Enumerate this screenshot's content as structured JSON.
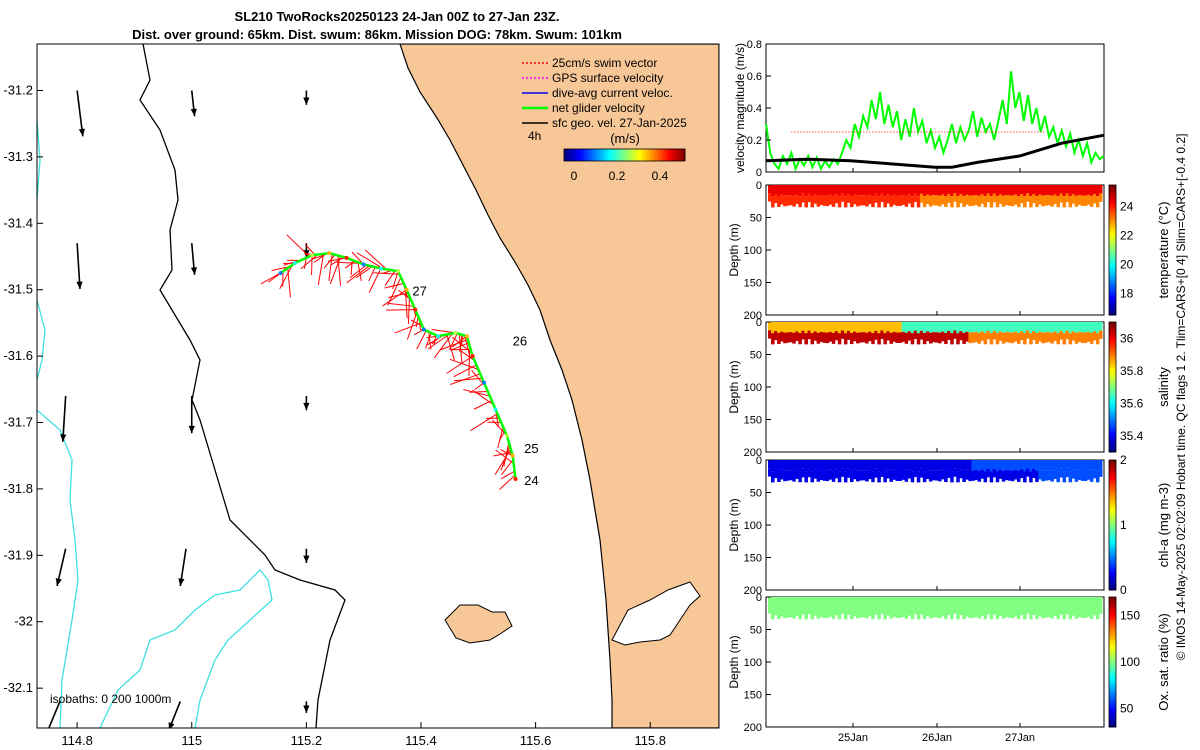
{
  "colors": {
    "land": "#f7c797",
    "isobath": "#40e0e0",
    "frame": "#000000",
    "track_vector": "#ff0000",
    "net_velocity": "#00ff00",
    "geo_velocity": "#000000"
  },
  "chart_data": [
    {
      "type": "map",
      "title": "SL210 TwoRocks20250123 24-Jan 00Z to 27-Jan 23Z.",
      "subtitle": "Dist. over ground: 65km. Dist. swum: 86km. Mission DOG: 78km. Swum: 101km",
      "xlim": [
        114.73,
        115.92
      ],
      "ylim": [
        -32.16,
        -31.13
      ],
      "xticks": [
        114.8,
        115,
        115.2,
        115.4,
        115.6,
        115.8
      ],
      "xtick_labels": [
        "114.8",
        "115",
        "115.2",
        "115.4",
        "115.6",
        "115.8"
      ],
      "yticks": [
        -31.2,
        -31.3,
        -31.4,
        -31.5,
        -31.6,
        -31.7,
        -31.8,
        -31.9,
        -32,
        -32.1
      ],
      "ytick_labels": [
        "-31.2",
        "-31.3",
        "-31.4",
        "-31.5",
        "-31.6",
        "-31.7",
        "-31.8",
        "-31.9",
        "-32",
        "-32.1"
      ],
      "legend": [
        {
          "label": "25cm/s swim vector",
          "color": "#ff0000",
          "style": "dotted"
        },
        {
          "label": "GPS surface velocity",
          "color": "#ff00ff",
          "style": "dotted"
        },
        {
          "label": "dive-avg current veloc.",
          "color": "#0000ff",
          "style": "solid"
        },
        {
          "label": "net glider velocity",
          "color": "#00ff00",
          "style": "solid"
        },
        {
          "label": "sfc geo. vel. 27-Jan-2025",
          "color": "#000000",
          "style": "solid"
        }
      ],
      "legend_note": "4h",
      "colorbar": {
        "label": "(m/s)",
        "ticks": [
          "0",
          "0.2",
          "0.4"
        ],
        "range": [
          0,
          0.5
        ]
      },
      "isobath_label": "isobaths: 0   200  1000m",
      "track": [
        [
          115.155,
          -31.475
        ],
        [
          115.18,
          -31.46
        ],
        [
          115.21,
          -31.448
        ],
        [
          115.24,
          -31.445
        ],
        [
          115.27,
          -31.452
        ],
        [
          115.3,
          -31.462
        ],
        [
          115.33,
          -31.468
        ],
        [
          115.36,
          -31.472
        ],
        [
          115.375,
          -31.5
        ],
        [
          115.39,
          -31.53
        ],
        [
          115.405,
          -31.56
        ],
        [
          115.43,
          -31.57
        ],
        [
          115.46,
          -31.565
        ],
        [
          115.48,
          -31.57
        ],
        [
          115.49,
          -31.6
        ],
        [
          115.51,
          -31.64
        ],
        [
          115.53,
          -31.68
        ],
        [
          115.55,
          -31.72
        ],
        [
          115.56,
          -31.75
        ],
        [
          115.565,
          -31.785
        ]
      ],
      "day_labels": [
        {
          "text": "27",
          "lon": 115.385,
          "lat": -31.503
        },
        {
          "text": "26",
          "lon": 115.56,
          "lat": -31.578
        },
        {
          "text": "25",
          "lon": 115.58,
          "lat": -31.74
        },
        {
          "text": "24",
          "lon": 115.58,
          "lat": -31.788
        }
      ],
      "geo_vectors": [
        {
          "lon": 114.8,
          "lat": -31.2,
          "u": 0.01,
          "v": -0.08
        },
        {
          "lon": 115.0,
          "lat": -31.2,
          "u": 0.005,
          "v": -0.045
        },
        {
          "lon": 115.2,
          "lat": -31.2,
          "u": 0.0,
          "v": -0.025
        },
        {
          "lon": 114.8,
          "lat": -31.43,
          "u": 0.005,
          "v": -0.08
        },
        {
          "lon": 115.0,
          "lat": -31.43,
          "u": 0.005,
          "v": -0.055
        },
        {
          "lon": 115.2,
          "lat": -31.43,
          "u": 0.0,
          "v": -0.025
        },
        {
          "lon": 114.78,
          "lat": -31.66,
          "u": -0.005,
          "v": -0.08
        },
        {
          "lon": 115.0,
          "lat": -31.66,
          "u": 0.0,
          "v": -0.065
        },
        {
          "lon": 115.2,
          "lat": -31.66,
          "u": 0.0,
          "v": -0.025
        },
        {
          "lon": 114.78,
          "lat": -31.89,
          "u": -0.015,
          "v": -0.065
        },
        {
          "lon": 114.99,
          "lat": -31.89,
          "u": -0.01,
          "v": -0.065
        },
        {
          "lon": 115.2,
          "lat": -31.89,
          "u": 0.0,
          "v": -0.025
        },
        {
          "lon": 114.77,
          "lat": -32.12,
          "u": -0.025,
          "v": -0.06
        },
        {
          "lon": 114.98,
          "lat": -32.12,
          "u": -0.02,
          "v": -0.05
        },
        {
          "lon": 115.2,
          "lat": -32.12,
          "u": 0.0,
          "v": -0.02
        }
      ]
    },
    {
      "type": "line",
      "ylabel": "velocity magnitude (m/s)",
      "ylim": [
        0,
        0.8
      ],
      "yticks": [
        0,
        0.2,
        0.4,
        0.6,
        0.8
      ],
      "ytick_labels": [
        "0",
        "0.2",
        "0.4",
        "0.6",
        "0.8"
      ],
      "xlim": [
        0,
        4
      ],
      "series": [
        {
          "name": "net glider velocity",
          "color": "#00ff00",
          "x": [
            0,
            0.05,
            0.1,
            0.15,
            0.2,
            0.25,
            0.3,
            0.35,
            0.4,
            0.45,
            0.5,
            0.55,
            0.6,
            0.65,
            0.7,
            0.75,
            0.8,
            0.85,
            0.9,
            0.95,
            1.0,
            1.05,
            1.1,
            1.15,
            1.2,
            1.25,
            1.3,
            1.35,
            1.4,
            1.45,
            1.5,
            1.55,
            1.6,
            1.65,
            1.7,
            1.75,
            1.8,
            1.85,
            1.9,
            1.95,
            2.0,
            2.05,
            2.1,
            2.15,
            2.2,
            2.25,
            2.3,
            2.35,
            2.4,
            2.45,
            2.5,
            2.55,
            2.6,
            2.65,
            2.7,
            2.75,
            2.8,
            2.85,
            2.9,
            2.95,
            3.0,
            3.05,
            3.1,
            3.15,
            3.2,
            3.25,
            3.3,
            3.35,
            3.4,
            3.45,
            3.5,
            3.55,
            3.6,
            3.65,
            3.7,
            3.75,
            3.8,
            3.85,
            3.9,
            3.95,
            4.0
          ],
          "y": [
            0.3,
            0.12,
            0.05,
            0.02,
            0.1,
            0.05,
            0.12,
            0.02,
            0.08,
            0.04,
            0.1,
            0.03,
            0.09,
            0.02,
            0.07,
            0.03,
            0.08,
            0.05,
            0.12,
            0.2,
            0.15,
            0.3,
            0.22,
            0.35,
            0.28,
            0.45,
            0.33,
            0.5,
            0.3,
            0.42,
            0.28,
            0.38,
            0.2,
            0.33,
            0.22,
            0.4,
            0.25,
            0.32,
            0.18,
            0.26,
            0.15,
            0.22,
            0.12,
            0.2,
            0.3,
            0.18,
            0.28,
            0.2,
            0.26,
            0.38,
            0.22,
            0.34,
            0.25,
            0.3,
            0.2,
            0.32,
            0.45,
            0.3,
            0.63,
            0.4,
            0.5,
            0.32,
            0.48,
            0.3,
            0.4,
            0.25,
            0.35,
            0.22,
            0.28,
            0.18,
            0.26,
            0.16,
            0.24,
            0.12,
            0.2,
            0.1,
            0.18,
            0.06,
            0.12,
            0.08,
            0.1
          ]
        },
        {
          "name": "sfc geo. vel.",
          "color": "#000000",
          "x": [
            0,
            0.5,
            1.0,
            1.5,
            2.0,
            2.2,
            2.5,
            3.0,
            3.5,
            4.0
          ],
          "y": [
            0.07,
            0.08,
            0.07,
            0.05,
            0.03,
            0.03,
            0.06,
            0.1,
            0.18,
            0.23
          ]
        },
        {
          "name": "swim speed",
          "color": "#ff0000",
          "style": "dotted",
          "x": [
            0.3,
            3.3
          ],
          "y": [
            0.25,
            0.25
          ]
        }
      ]
    },
    {
      "type": "heatmap",
      "variable": "temperature",
      "ylabel": "Depth (m)",
      "clabel": "temperature (°C)",
      "ylim": [
        0,
        200
      ],
      "yticks": [
        "0",
        "50",
        "100",
        "150",
        "200"
      ],
      "crange": [
        16.5,
        25.5
      ],
      "cticks": [
        "18",
        "20",
        "22",
        "24"
      ],
      "colorscale": "jet",
      "surface_value": 24.5,
      "deep_value": 24.0,
      "profile_depth_m": 30
    },
    {
      "type": "heatmap",
      "variable": "salinity",
      "ylabel": "Depth (m)",
      "clabel": "salinity",
      "ylim": [
        0,
        200
      ],
      "yticks": [
        "0",
        "50",
        "100",
        "150",
        "200"
      ],
      "crange": [
        35.3,
        36.1
      ],
      "cticks": [
        "35.4",
        "35.6",
        "35.8",
        "36"
      ],
      "colorscale": "jet",
      "surface_value": 35.9,
      "deep_value": 36.05,
      "profile_depth_m": 30
    },
    {
      "type": "heatmap",
      "variable": "chl-a",
      "ylabel": "Depth (m)",
      "clabel": "chl-a (mg m-3)",
      "ylim": [
        0,
        200
      ],
      "yticks": [
        "0",
        "50",
        "100",
        "150",
        "200"
      ],
      "crange": [
        0,
        2
      ],
      "cticks": [
        "0",
        "1",
        "2"
      ],
      "colorscale": "jet",
      "surface_value": 0.3,
      "deep_value": 0.2,
      "profile_depth_m": 30
    },
    {
      "type": "heatmap",
      "variable": "oxygen saturation",
      "ylabel": "Depth (m)",
      "clabel": "Ox. sat. ratio (%)",
      "ylim": [
        0,
        200
      ],
      "yticks": [
        "0",
        "50",
        "100",
        "150",
        "200"
      ],
      "xticks": [
        "25Jan",
        "26Jan",
        "27Jan"
      ],
      "crange": [
        30,
        170
      ],
      "cticks": [
        "50",
        "100",
        "150"
      ],
      "colorscale": "jet",
      "surface_value": 100,
      "deep_value": 100,
      "profile_depth_m": 30
    }
  ],
  "side_caption": "© IMOS 14-May-2025 02:02:09 Hobart time. QC flags 1  2. Tlim=CARS+[0 4] Slim=CARS+[-0.4 0.2]"
}
